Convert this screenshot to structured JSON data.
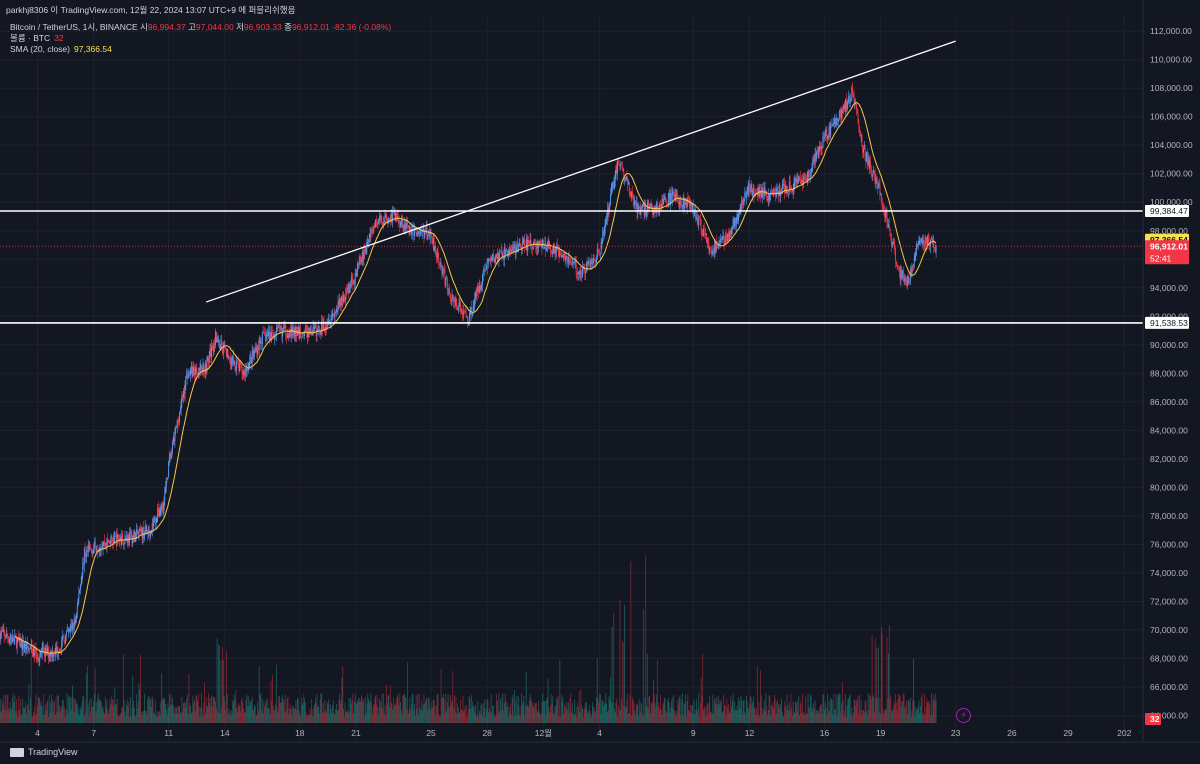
{
  "header": {
    "publish_line": "parkhj8306 이 TradingView.com, 12월 22, 2024 13:07 UTC+9 에 퍼블리쉬했음",
    "symbol": "Bitcoin / TetherUS, 1시, BINANCE",
    "ohlc": {
      "open_label": "시",
      "open": "96,994.37",
      "high_label": "고",
      "high": "97,044.00",
      "low_label": "저",
      "low": "96,903.33",
      "close_label": "종",
      "close": "96,912.01",
      "change": "-82.36 (-0.08%)"
    },
    "volume_label": "볼륨 · BTC",
    "volume_value": "32",
    "sma_label": "SMA (20, close)",
    "sma_value": "97,366.54"
  },
  "footer": {
    "brand": "TradingView"
  },
  "colors": {
    "background": "#131722",
    "up": "#5b9cf6",
    "down": "#f23645",
    "sma": "#f7c948",
    "lines": "#ffffff",
    "grid": "#1e222d"
  },
  "chart_data": {
    "type": "candlestick",
    "title": "Bitcoin / TetherUS, 1시, BINANCE",
    "ylim": [
      63200,
      113200
    ],
    "yticks": [
      64000,
      66000,
      68000,
      70000,
      72000,
      74000,
      76000,
      78000,
      80000,
      82000,
      84000,
      86000,
      88000,
      90000,
      92000,
      94000,
      96000,
      98000,
      100000,
      102000,
      104000,
      106000,
      108000,
      110000,
      112000
    ],
    "yticks_labels": [
      "64,000.00",
      "66,000.00",
      "68,000.00",
      "70,000.00",
      "72,000.00",
      "74,000.00",
      "76,000.00",
      "78,000.00",
      "80,000.00",
      "82,000.00",
      "84,000.00",
      "86,000.00",
      "88,000.00",
      "90,000.00",
      "92,000.00",
      "94,000.00",
      "96,000.00",
      "98,000.00",
      "100,000.00",
      "102,000.00",
      "104,000.00",
      "106,000.00",
      "108,000.00",
      "110,000.00",
      "112,000.00"
    ],
    "xlim": [
      "2024-11-02",
      "2025-01-02"
    ],
    "xticks": [
      {
        "date": "2024-11-04",
        "label": "4"
      },
      {
        "date": "2024-11-07",
        "label": "7"
      },
      {
        "date": "2024-11-11",
        "label": "11"
      },
      {
        "date": "2024-11-14",
        "label": "14"
      },
      {
        "date": "2024-11-18",
        "label": "18"
      },
      {
        "date": "2024-11-21",
        "label": "21"
      },
      {
        "date": "2024-11-25",
        "label": "25"
      },
      {
        "date": "2024-11-28",
        "label": "28"
      },
      {
        "date": "2024-12-01",
        "label": "12월"
      },
      {
        "date": "2024-12-04",
        "label": "4"
      },
      {
        "date": "2024-12-09",
        "label": "9"
      },
      {
        "date": "2024-12-12",
        "label": "12"
      },
      {
        "date": "2024-12-16",
        "label": "16"
      },
      {
        "date": "2024-12-19",
        "label": "19"
      },
      {
        "date": "2024-12-23",
        "label": "23"
      },
      {
        "date": "2024-12-26",
        "label": "26"
      },
      {
        "date": "2024-12-29",
        "label": "29"
      },
      {
        "date": "2025-01-01",
        "label": "202"
      }
    ],
    "price_path": [
      [
        "2024-11-02",
        69800
      ],
      [
        "2024-11-03",
        69100
      ],
      [
        "2024-11-04",
        68300
      ],
      [
        "2024-11-05",
        68500
      ],
      [
        "2024-11-06",
        70500
      ],
      [
        "2024-11-06T12",
        75300
      ],
      [
        "2024-11-07",
        75800
      ],
      [
        "2024-11-08",
        76300
      ],
      [
        "2024-11-09",
        76500
      ],
      [
        "2024-11-10",
        77000
      ],
      [
        "2024-11-10T18",
        79000
      ],
      [
        "2024-11-11",
        81500
      ],
      [
        "2024-11-12",
        88000
      ],
      [
        "2024-11-13",
        88500
      ],
      [
        "2024-11-13T12",
        90500
      ],
      [
        "2024-11-14",
        89500
      ],
      [
        "2024-11-15",
        88000
      ],
      [
        "2024-11-16",
        90500
      ],
      [
        "2024-11-17",
        91000
      ],
      [
        "2024-11-18",
        90800
      ],
      [
        "2024-11-19",
        91000
      ],
      [
        "2024-11-20",
        92500
      ],
      [
        "2024-11-21",
        95000
      ],
      [
        "2024-11-22",
        98500
      ],
      [
        "2024-11-23",
        99100
      ],
      [
        "2024-11-24",
        98000
      ],
      [
        "2024-11-25",
        97800
      ],
      [
        "2024-11-26",
        93500
      ],
      [
        "2024-11-27",
        91800
      ],
      [
        "2024-11-28",
        95800
      ],
      [
        "2024-11-29",
        96500
      ],
      [
        "2024-11-30",
        97000
      ],
      [
        "2024-12-01",
        97000
      ],
      [
        "2024-12-02",
        96500
      ],
      [
        "2024-12-03",
        95000
      ],
      [
        "2024-12-04",
        96500
      ],
      [
        "2024-12-05",
        103000
      ],
      [
        "2024-12-06",
        99500
      ],
      [
        "2024-12-07",
        99500
      ],
      [
        "2024-12-08",
        100500
      ],
      [
        "2024-12-09",
        99500
      ],
      [
        "2024-12-10",
        96500
      ],
      [
        "2024-12-11",
        98000
      ],
      [
        "2024-12-12",
        101000
      ],
      [
        "2024-12-13",
        100500
      ],
      [
        "2024-12-14",
        101000
      ],
      [
        "2024-12-15",
        101500
      ],
      [
        "2024-12-16",
        104500
      ],
      [
        "2024-12-17",
        106500
      ],
      [
        "2024-12-17T12",
        107800
      ],
      [
        "2024-12-18",
        104000
      ],
      [
        "2024-12-19",
        100500
      ],
      [
        "2024-12-20",
        95000
      ],
      [
        "2024-12-20T12",
        94500
      ],
      [
        "2024-12-21",
        97500
      ],
      [
        "2024-12-22",
        96900
      ]
    ],
    "volume_spikes": [
      {
        "date": "2024-11-14",
        "value": 0.52
      },
      {
        "date": "2024-12-05",
        "value": 0.72
      },
      {
        "date": "2024-12-06",
        "value": 1.0
      },
      {
        "date": "2024-12-19",
        "value": 0.58
      }
    ],
    "lines": [
      {
        "name": "horizontal-resistance",
        "type": "horizontal",
        "y": 99384.47,
        "label": "99,384.47"
      },
      {
        "name": "horizontal-support",
        "type": "horizontal",
        "y": 91538.53,
        "label": "91,538.53"
      },
      {
        "name": "rising-trendline",
        "type": "trend",
        "from": [
          "2024-11-13",
          93000
        ],
        "to": [
          "2024-12-23",
          111300
        ]
      }
    ],
    "price_labels": [
      {
        "name": "sma-price-label",
        "value": "97,366.54",
        "y": 97366.54,
        "bg": "#f7e14d",
        "color": "#131722"
      },
      {
        "name": "last-price-label",
        "value": "96,912.01",
        "y": 96912.01,
        "bg": "#f23645",
        "color": "#ffffff",
        "sub": "52:41"
      },
      {
        "name": "volume-value-label",
        "value": "32",
        "y": 63500,
        "bg": "#f23645",
        "color": "#ffffff"
      }
    ]
  }
}
